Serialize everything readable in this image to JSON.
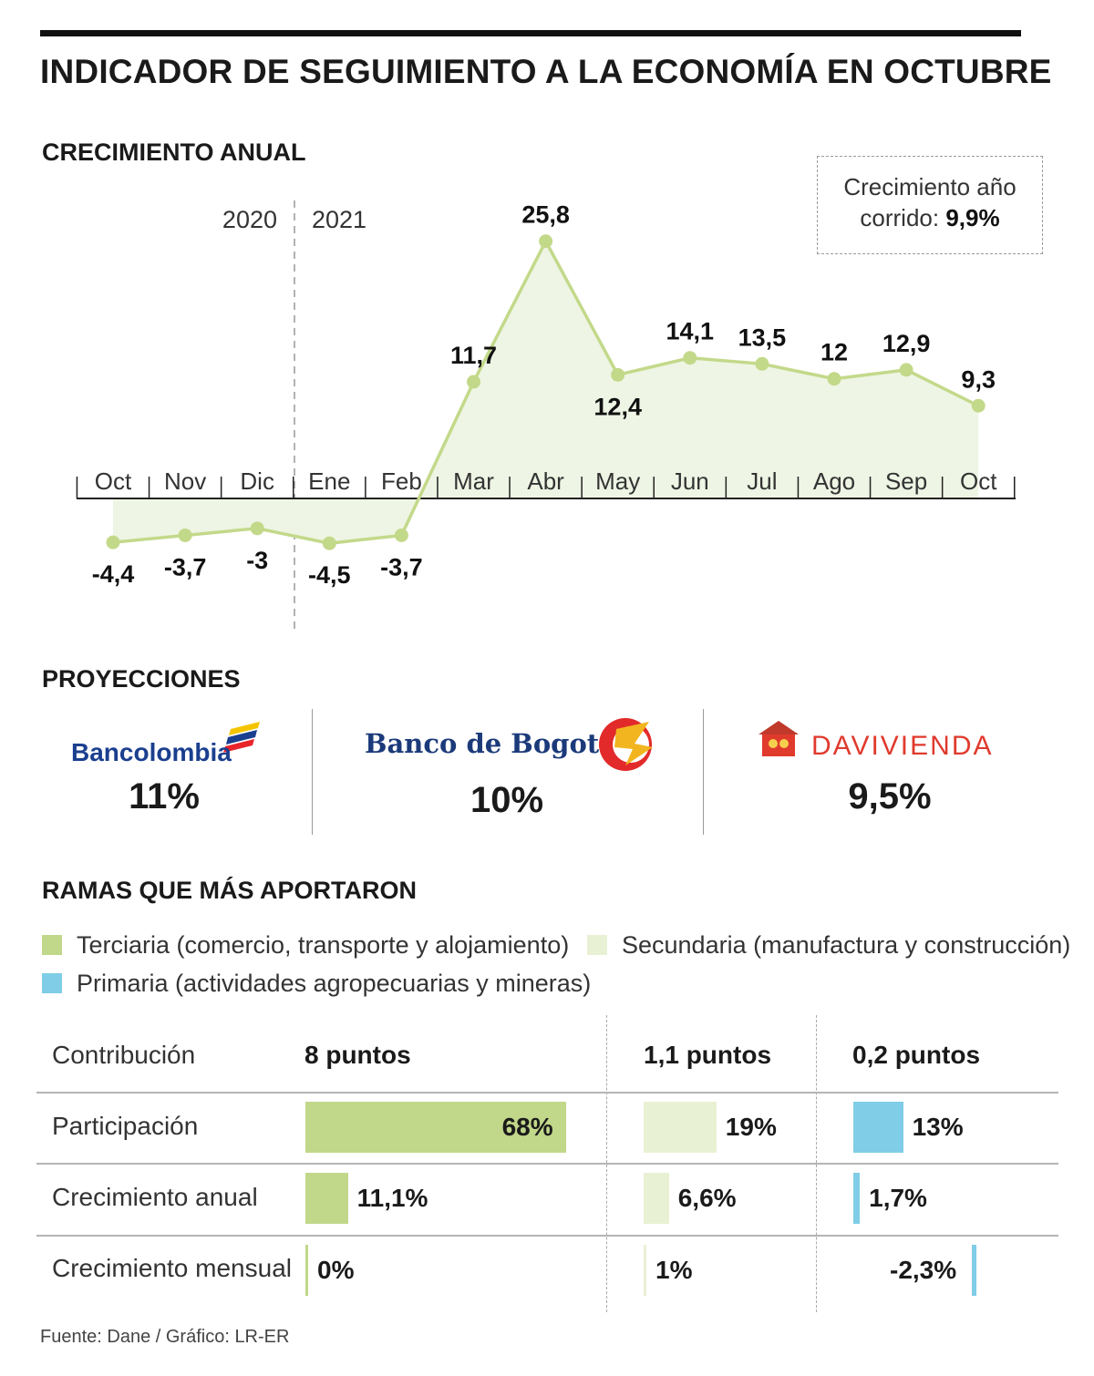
{
  "title": "INDICADOR DE SEGUIMIENTO A LA ECONOMÍA EN OCTUBRE",
  "growth_section": {
    "title": "CRECIMIENTO ANUAL",
    "year_labels": [
      "2020",
      "2021"
    ],
    "note_line1": "Crecimiento año",
    "note_line2_prefix": "corrido: ",
    "note_value": "9,9%"
  },
  "chart_data": {
    "type": "area",
    "title": "CRECIMIENTO ANUAL",
    "categories": [
      "Oct",
      "Nov",
      "Dic",
      "Ene",
      "Feb",
      "Mar",
      "Abr",
      "May",
      "Jun",
      "Jul",
      "Ago",
      "Sep",
      "Oct"
    ],
    "values": [
      -4.4,
      -3.7,
      -3,
      -4.5,
      -3.7,
      11.7,
      25.8,
      12.4,
      14.1,
      13.5,
      12,
      12.9,
      9.3
    ],
    "value_labels": [
      "-4,4",
      "-3,7",
      "-3",
      "-4,5",
      "-3,7",
      "11,7",
      "25,8",
      "12,4",
      "14,1",
      "13,5",
      "12",
      "12,9",
      "9,3"
    ],
    "label_position": [
      "below",
      "below",
      "below",
      "below",
      "below",
      "above",
      "above",
      "below",
      "above",
      "above",
      "above",
      "above",
      "above"
    ],
    "year_split": {
      "after_category_index": 2,
      "labels": [
        "2020",
        "2021"
      ]
    },
    "colors": {
      "line": "#c3d98a",
      "fill": "#eef5e4",
      "point": "#c3d98a"
    },
    "grid": false
  },
  "projections": {
    "title": "PROYECCIONES",
    "banks": [
      {
        "name": "Bancolombia",
        "value": "11%"
      },
      {
        "name": "Banco de Bogotá",
        "value": "10%"
      },
      {
        "name": "DAVIVIENDA",
        "value": "9,5%"
      }
    ]
  },
  "branches": {
    "title": "RAMAS QUE MÁS APORTARON",
    "legend": [
      {
        "label": "Terciaria (comercio, transporte y alojamiento)",
        "color": "#c1d78a"
      },
      {
        "label": "Secundaria (manufactura y construcción)",
        "color": "#e9f1d4"
      },
      {
        "label": "Primaria (actividades agropecuarias y mineras)",
        "color": "#7fcde6"
      }
    ],
    "contribution_label": "Contribución",
    "contributions": [
      "8 puntos",
      "1,1 puntos",
      "0,2 puntos"
    ],
    "rows": [
      {
        "label": "Participación",
        "values": [
          68,
          19,
          13
        ],
        "labels": [
          "68%",
          "19%",
          "13%"
        ]
      },
      {
        "label": "Crecimiento anual",
        "values": [
          11.1,
          6.6,
          1.7
        ],
        "labels": [
          "11,1%",
          "6,6%",
          "1,7%"
        ]
      },
      {
        "label": "Crecimiento mensual",
        "values": [
          0,
          1,
          -2.3
        ],
        "labels": [
          "0%",
          "1%",
          "-2,3%"
        ]
      }
    ]
  },
  "source": "Fuente: Dane / Gráfico: LR-ER"
}
